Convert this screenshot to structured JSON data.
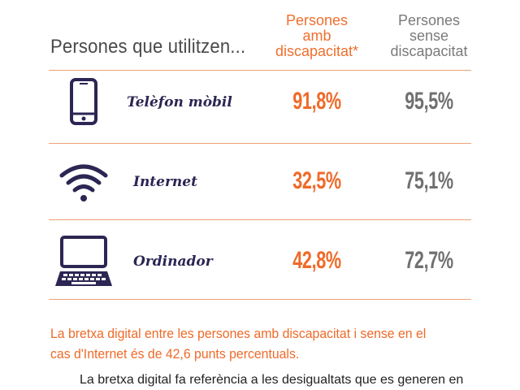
{
  "header": {
    "title": "Persones que utilitzen...",
    "col_disability": [
      "Persones",
      "amb",
      "discapacitat*"
    ],
    "col_no_disability": [
      "Persones",
      "sense",
      "discapacitat"
    ]
  },
  "rows": [
    {
      "icon": "mobile-phone-icon",
      "label": "Telèfon mòbil",
      "with_disability": "91,8%",
      "without_disability": "95,5%"
    },
    {
      "icon": "wifi-icon",
      "label": "Internet",
      "with_disability": "32,5%",
      "without_disability": "75,1%"
    },
    {
      "icon": "laptop-icon",
      "label": "Ordinador",
      "with_disability": "42,8%",
      "without_disability": "72,7%"
    }
  ],
  "summary": [
    "La bretxa digital entre les persones amb discapacitat i sense en el",
    "cas d'Internet és de 42,6 punts percentuals."
  ],
  "footer": "La bretxa digital fa referència a les desigualtats que es generen en",
  "colors": {
    "accent_orange": "#ef6a29",
    "gray": "#707070",
    "navy": "#2b2653"
  }
}
